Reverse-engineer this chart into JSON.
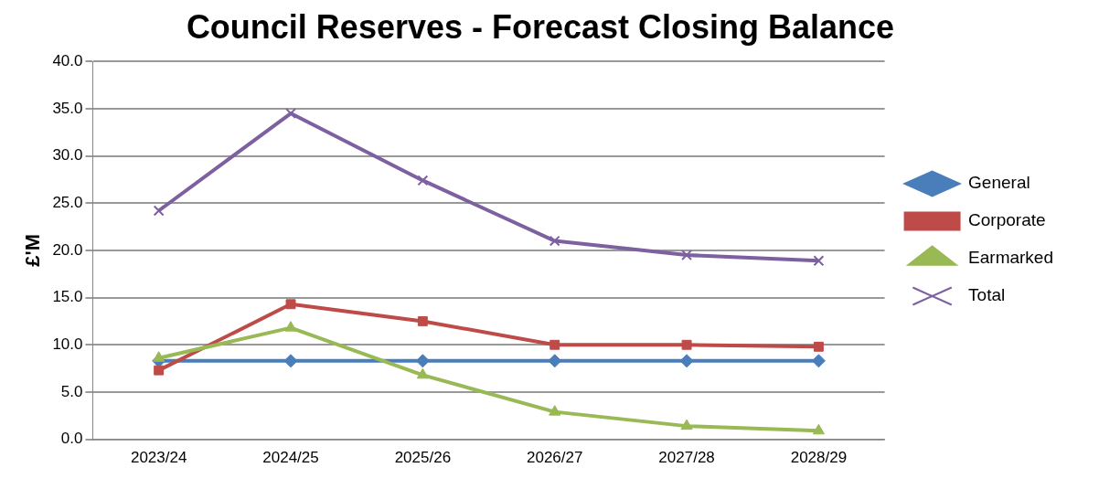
{
  "chart_data": {
    "type": "line",
    "title": "Council Reserves - Forecast Closing Balance",
    "ylabel": "£'M",
    "categories": [
      "2023/24",
      "2024/25",
      "2025/26",
      "2026/27",
      "2027/28",
      "2028/29"
    ],
    "series": [
      {
        "name": "General",
        "color": "#4a7ebb",
        "marker": "diamond",
        "values": [
          8.3,
          8.3,
          8.3,
          8.3,
          8.3,
          8.3
        ]
      },
      {
        "name": "Corporate",
        "color": "#be4b48",
        "marker": "square",
        "values": [
          7.3,
          14.3,
          12.5,
          10.0,
          10.0,
          9.8
        ]
      },
      {
        "name": "Earmarked",
        "color": "#98b954",
        "marker": "triangle",
        "values": [
          8.6,
          11.8,
          6.8,
          2.9,
          1.4,
          0.9
        ]
      },
      {
        "name": "Total",
        "color": "#7d60a0",
        "marker": "cross",
        "values": [
          24.2,
          34.5,
          27.4,
          21.0,
          19.5,
          18.9
        ]
      }
    ],
    "ylim": [
      0,
      40
    ],
    "yticks": [
      {
        "value": 0,
        "label": "0.0"
      },
      {
        "value": 5,
        "label": "5.0"
      },
      {
        "value": 10,
        "label": "10.0"
      },
      {
        "value": 15,
        "label": "15.0"
      },
      {
        "value": 20,
        "label": "20.0"
      },
      {
        "value": 25,
        "label": "25.0"
      },
      {
        "value": 30,
        "label": "30.0"
      },
      {
        "value": 35,
        "label": "35.0"
      },
      {
        "value": 40,
        "label": "40.0"
      }
    ],
    "grid": "y",
    "legend": "right",
    "line_style": "solid"
  }
}
